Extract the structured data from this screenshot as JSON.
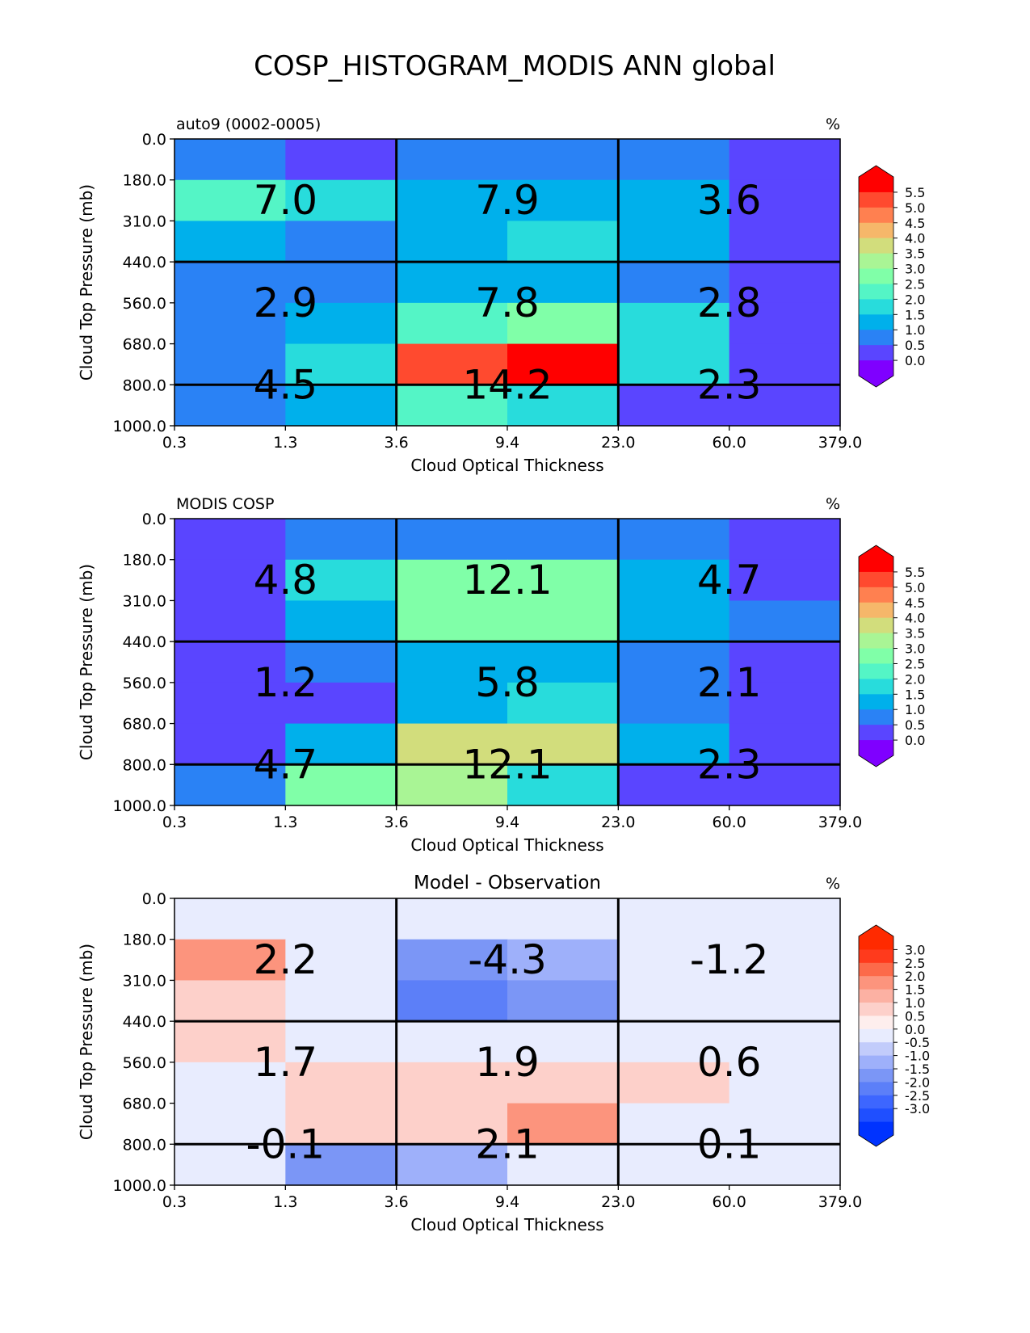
{
  "figure_title": "COSP_HISTOGRAM_MODIS ANN global",
  "colors": {
    "sequential": [
      "#7f00ff",
      "#5a45ff",
      "#2a82f5",
      "#00b0eb",
      "#28dcdc",
      "#54f5c6",
      "#80ffa8",
      "#a9f595",
      "#d2dd7c",
      "#f6b76a",
      "#ff8050",
      "#ff4a2f",
      "#ff0000"
    ],
    "diverging": [
      "#0033ff",
      "#1f4fff",
      "#3d66ff",
      "#5c7ff8",
      "#7b96f6",
      "#9eb0fa",
      "#c2ccfb",
      "#e8ecfe",
      "#feeeed",
      "#fdd0ca",
      "#fcb1a3",
      "#fc947d",
      "#fc6a4a",
      "#ff3a1c",
      "#ff2a00"
    ]
  },
  "chart_data": [
    {
      "type": "heatmap",
      "title_left": "auto9 (0002-0005)",
      "title_center": "",
      "units": "%",
      "xlabel": "Cloud Optical Thickness",
      "ylabel": "Cloud Top Pressure (mb)",
      "x_ticks": [
        "0.3",
        "1.3",
        "3.6",
        "9.4",
        "23.0",
        "60.0",
        "379.0"
      ],
      "y_ticks": [
        "0.0",
        "180.0",
        "310.0",
        "440.0",
        "560.0",
        "680.0",
        "800.0",
        "1000.0"
      ],
      "colorbar": {
        "ticks": [
          "5.5",
          "5.0",
          "4.5",
          "4.0",
          "3.5",
          "3.0",
          "2.5",
          "2.0",
          "1.5",
          "1.0",
          "0.5",
          "0.0"
        ],
        "palette": "sequential",
        "min": 0.0,
        "max": 5.5,
        "step": 0.5,
        "extend": "both"
      },
      "values": [
        [
          0.7,
          0.2,
          0.8,
          0.7,
          0.8,
          0.2
        ],
        [
          2.4,
          1.9,
          1.3,
          1.4,
          1.4,
          0.2
        ],
        [
          1.4,
          0.8,
          1.2,
          1.6,
          1.3,
          0.2
        ],
        [
          0.9,
          0.8,
          1.3,
          1.4,
          0.9,
          0.2
        ],
        [
          0.9,
          1.2,
          2.2,
          2.7,
          1.7,
          0.2
        ],
        [
          0.8,
          1.9,
          5.1,
          5.6,
          1.8,
          0.1
        ],
        [
          0.7,
          1.3,
          2.2,
          1.8,
          0.1,
          0.1
        ]
      ],
      "block_values": [
        [
          "7.0",
          "7.9",
          "3.6"
        ],
        [
          "2.9",
          "7.8",
          "2.8"
        ],
        [
          "4.5",
          "14.2",
          "2.3"
        ]
      ]
    },
    {
      "type": "heatmap",
      "title_left": "MODIS COSP",
      "title_center": "",
      "units": "%",
      "xlabel": "Cloud Optical Thickness",
      "ylabel": "Cloud Top Pressure (mb)",
      "x_ticks": [
        "0.3",
        "1.3",
        "3.6",
        "9.4",
        "23.0",
        "60.0",
        "379.0"
      ],
      "y_ticks": [
        "0.0",
        "180.0",
        "310.0",
        "440.0",
        "560.0",
        "680.0",
        "800.0",
        "1000.0"
      ],
      "colorbar": {
        "ticks": [
          "5.5",
          "5.0",
          "4.5",
          "4.0",
          "3.5",
          "3.0",
          "2.5",
          "2.0",
          "1.5",
          "1.0",
          "0.5",
          "0.0"
        ],
        "palette": "sequential",
        "min": 0.0,
        "max": 5.5,
        "step": 0.5,
        "extend": "both"
      },
      "values": [
        [
          0.4,
          0.8,
          0.8,
          0.8,
          0.8,
          0.2
        ],
        [
          0.4,
          1.8,
          2.9,
          2.9,
          1.2,
          0.4
        ],
        [
          0.4,
          1.3,
          2.9,
          2.8,
          1.2,
          0.8
        ],
        [
          0.4,
          0.7,
          1.4,
          1.4,
          0.8,
          0.4
        ],
        [
          0.4,
          0.3,
          1.4,
          1.9,
          0.8,
          0.4
        ],
        [
          0.4,
          1.3,
          3.6,
          3.6,
          1.4,
          0.4
        ],
        [
          0.8,
          2.8,
          3.1,
          1.9,
          0.2,
          0.2
        ]
      ],
      "block_values": [
        [
          "4.8",
          "12.1",
          "4.7"
        ],
        [
          "1.2",
          "5.8",
          "2.1"
        ],
        [
          "4.7",
          "12.1",
          "2.3"
        ]
      ]
    },
    {
      "type": "heatmap",
      "title_left": "",
      "title_center": "Model - Observation",
      "units": "%",
      "xlabel": "Cloud Optical Thickness",
      "ylabel": "Cloud Top Pressure (mb)",
      "x_ticks": [
        "0.3",
        "1.3",
        "3.6",
        "9.4",
        "23.0",
        "60.0",
        "379.0"
      ],
      "y_ticks": [
        "0.0",
        "180.0",
        "310.0",
        "440.0",
        "560.0",
        "680.0",
        "800.0",
        "1000.0"
      ],
      "colorbar": {
        "ticks": [
          "3.0",
          "2.5",
          "2.0",
          "1.5",
          "1.0",
          "0.5",
          "0.0",
          "-0.5",
          "-1.0",
          "-1.5",
          "-2.0",
          "-2.5",
          "-3.0"
        ],
        "palette": "diverging",
        "min": -3.25,
        "max": 3.25,
        "step": 0.5,
        "extend": "both"
      },
      "values": [
        [
          0.1,
          -0.1,
          -0.1,
          0.1,
          0.1,
          -0.1
        ],
        [
          2.0,
          -0.1,
          -1.5,
          -0.9,
          -0.1,
          -0.1
        ],
        [
          0.8,
          -0.1,
          -1.8,
          -1.5,
          -0.1,
          -0.1
        ],
        [
          0.8,
          0.1,
          0.1,
          -0.1,
          0.1,
          -0.1
        ],
        [
          0.2,
          0.8,
          0.8,
          1.2,
          0.8,
          -0.1
        ],
        [
          0.1,
          0.8,
          1.2,
          1.8,
          0.1,
          -0.1
        ],
        [
          -0.1,
          -1.5,
          -0.9,
          0.1,
          -0.1,
          -0.1
        ]
      ],
      "block_values": [
        [
          "2.2",
          "-4.3",
          "-1.2"
        ],
        [
          "1.7",
          "1.9",
          "0.6"
        ],
        [
          "-0.1",
          "2.1",
          "0.1"
        ]
      ]
    }
  ]
}
